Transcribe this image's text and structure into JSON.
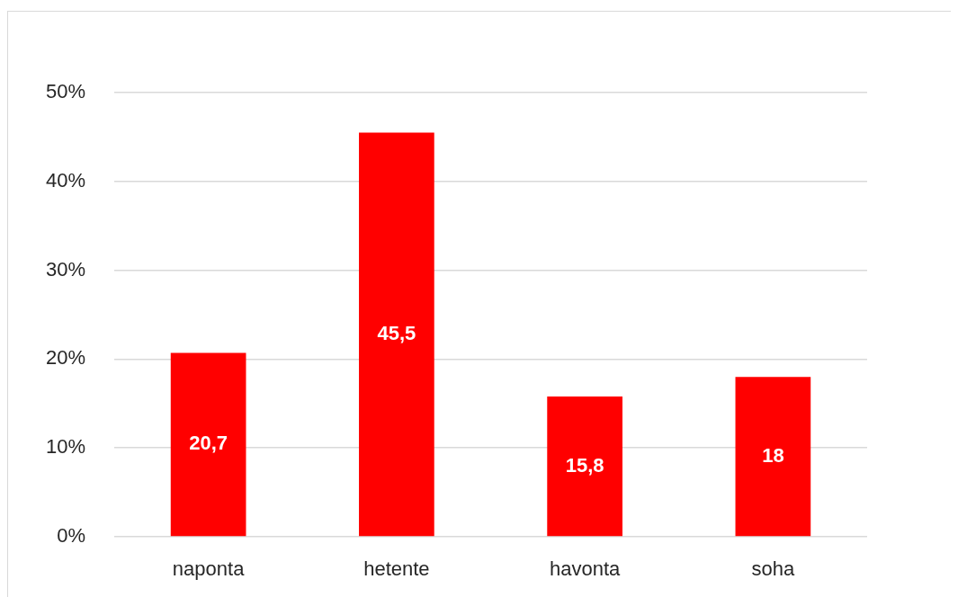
{
  "chart_data": {
    "type": "bar",
    "categories": [
      "naponta",
      "hetente",
      "havonta",
      "soha"
    ],
    "values": [
      20.7,
      45.5,
      15.8,
      18
    ],
    "color": "#ff0000",
    "value_labels": [
      "20,7",
      "45,5",
      "15,8",
      "18"
    ],
    "ylim": [
      0,
      50
    ],
    "yticks": [
      {
        "value": 0,
        "label": "0%"
      },
      {
        "value": 10,
        "label": "10%"
      },
      {
        "value": 20,
        "label": "20%"
      },
      {
        "value": 30,
        "label": "30%"
      },
      {
        "value": 40,
        "label": "40%"
      },
      {
        "value": 50,
        "label": "50%"
      }
    ],
    "grid": "y"
  }
}
